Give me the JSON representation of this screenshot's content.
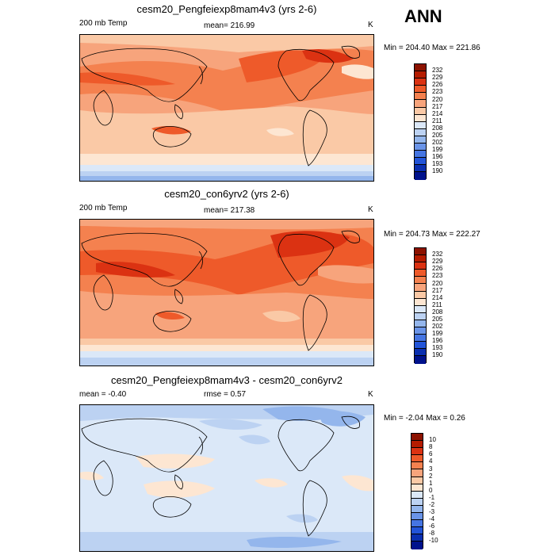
{
  "season": "ANN",
  "panels": [
    {
      "title": "cesm20_Pengfeiexp8mam4v3 (yrs 2-6)",
      "left_label": "200 mb Temp",
      "center_label": "mean= 216.99",
      "right_label": "K",
      "minmax": "Min = 204.40 Max = 221.86",
      "colorbar_levels": [
        "232",
        "229",
        "226",
        "223",
        "220",
        "217",
        "214",
        "211",
        "208",
        "205",
        "202",
        "199",
        "196",
        "193",
        "190"
      ],
      "colorbar_colors": [
        "#8c1200",
        "#b51c00",
        "#db3212",
        "#ee5a2a",
        "#f4814f",
        "#f7a47c",
        "#fac9a6",
        "#fde6d2",
        "#dbe8f8",
        "#bcd2f2",
        "#94b6ec",
        "#6a94e8",
        "#4575e2",
        "#2254d8",
        "#0a2fb0",
        "#00128c"
      ]
    },
    {
      "title": "cesm20_con6yrv2 (yrs 2-6)",
      "left_label": "200 mb Temp",
      "center_label": "mean= 217.38",
      "right_label": "K",
      "minmax": "Min = 204.73 Max = 222.27",
      "colorbar_levels": [
        "232",
        "229",
        "226",
        "223",
        "220",
        "217",
        "214",
        "211",
        "208",
        "205",
        "202",
        "199",
        "196",
        "193",
        "190"
      ],
      "colorbar_colors": [
        "#8c1200",
        "#b51c00",
        "#db3212",
        "#ee5a2a",
        "#f4814f",
        "#f7a47c",
        "#fac9a6",
        "#fde6d2",
        "#dbe8f8",
        "#bcd2f2",
        "#94b6ec",
        "#6a94e8",
        "#4575e2",
        "#2254d8",
        "#0a2fb0",
        "#00128c"
      ]
    },
    {
      "title": "cesm20_Pengfeiexp8mam4v3 - cesm20_con6yrv2",
      "left_label": "mean =  -0.40",
      "center_label": "rmse =   0.57",
      "right_label": "K",
      "minmax": "Min =  -2.04 Max =   0.26",
      "colorbar_levels": [
        "10",
        "8",
        "6",
        "4",
        "3",
        "2",
        "1",
        "0",
        "-1",
        "-2",
        "-3",
        "-4",
        "-6",
        "-8",
        "-10"
      ],
      "colorbar_colors": [
        "#8c1200",
        "#b51c00",
        "#db3212",
        "#ee5a2a",
        "#f4814f",
        "#f7a47c",
        "#fac9a6",
        "#fde6d2",
        "#dbe8f8",
        "#bcd2f2",
        "#94b6ec",
        "#6a94e8",
        "#4575e2",
        "#2254d8",
        "#0a2fb0",
        "#00128c"
      ]
    }
  ]
}
